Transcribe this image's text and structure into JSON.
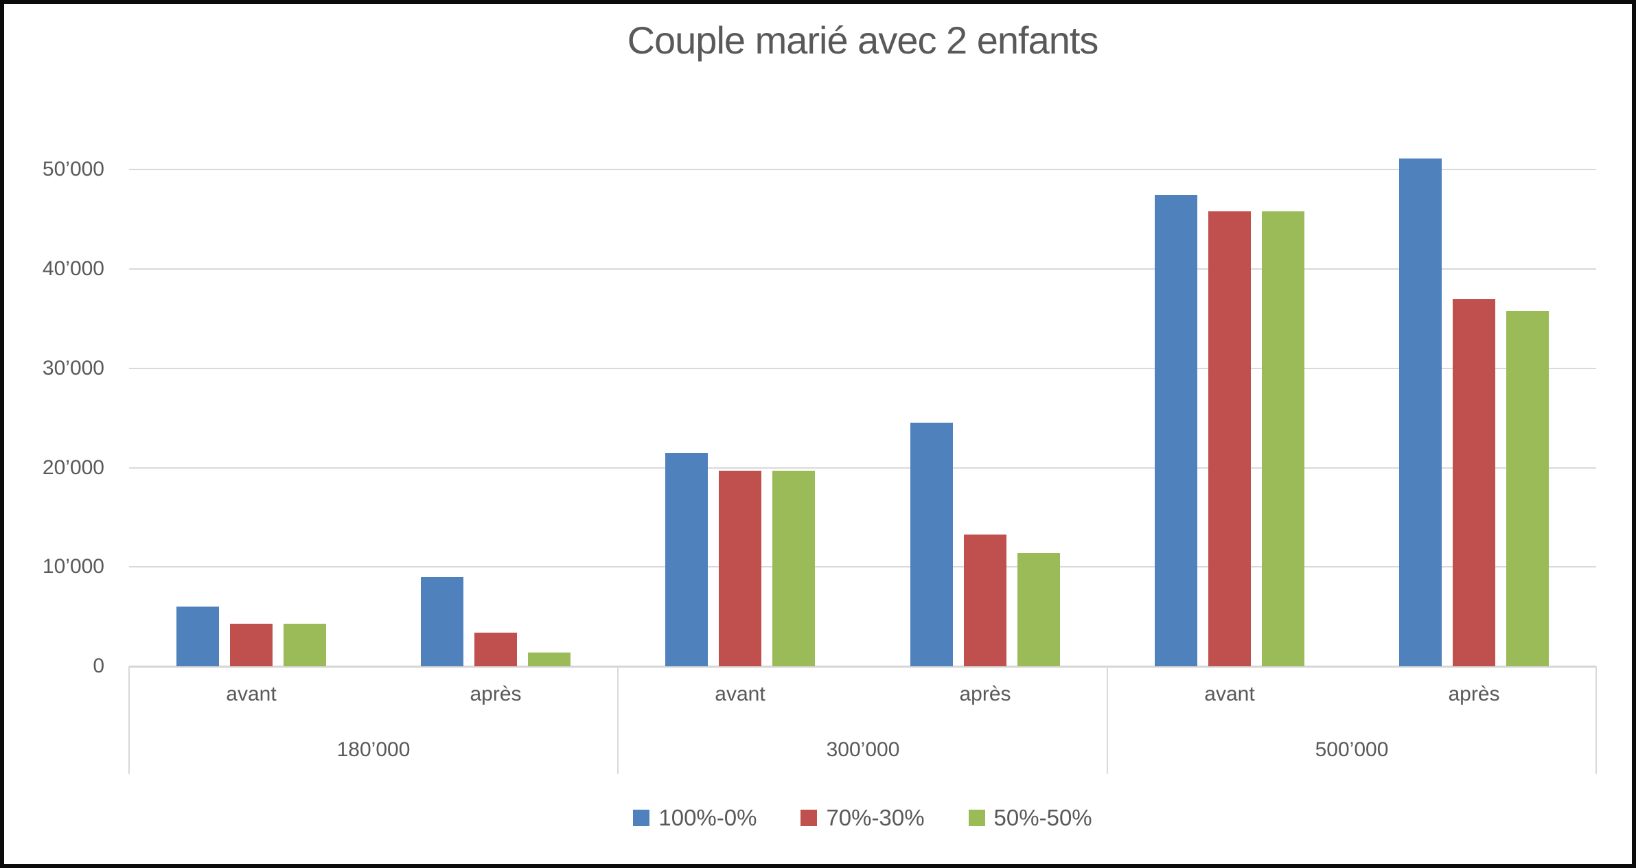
{
  "window": {
    "background": "#ffffff",
    "frame_border_color": "#0b0b0b"
  },
  "chart_data": {
    "type": "bar",
    "title": "Couple marié avec 2 enfants",
    "group_labels": [
      "180’000",
      "300’000",
      "500’000"
    ],
    "categories": [
      "avant",
      "après",
      "avant",
      "après",
      "avant",
      "après"
    ],
    "series": [
      {
        "name": "100%-0%",
        "color": "#4F81BD",
        "values": [
          6000,
          9000,
          21500,
          24500,
          47500,
          51100
        ]
      },
      {
        "name": "70%-30%",
        "color": "#C0504D",
        "values": [
          4300,
          3400,
          19700,
          13300,
          45800,
          37000
        ]
      },
      {
        "name": "50%-50%",
        "color": "#9BBB59",
        "values": [
          4300,
          1400,
          19700,
          11400,
          45800,
          35800
        ]
      }
    ],
    "y_ticks": [
      "0",
      "10’000",
      "20’000",
      "30’000",
      "40’000",
      "50’000"
    ],
    "y_tick_values": [
      0,
      10000,
      20000,
      30000,
      40000,
      50000
    ],
    "ylim": [
      0,
      55000
    ],
    "grid": true,
    "legend_position": "bottom",
    "text_color": "#595959",
    "grid_color": "#D9D9D9"
  }
}
